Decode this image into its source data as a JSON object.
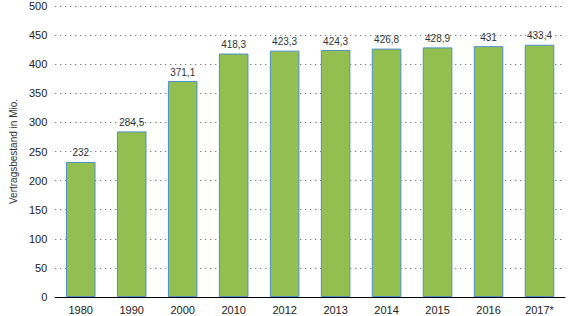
{
  "chart_data": {
    "type": "bar",
    "y_label": "Vertragsbestand in Mio.",
    "categories": [
      "1980",
      "1990",
      "2000",
      "2010",
      "2012",
      "2013",
      "2014",
      "2015",
      "2016",
      "2017*"
    ],
    "values": [
      232,
      284.5,
      371.1,
      418.3,
      423.3,
      424.3,
      426.8,
      428.9,
      431,
      433.4
    ],
    "value_labels": [
      "232",
      "284,5",
      "371,1",
      "418,3",
      "423,3",
      "424,3",
      "426,8",
      "428,9",
      "431",
      "433,4"
    ],
    "color": "#92bf4f",
    "ylim": [
      0,
      500
    ],
    "yticks": [
      0,
      50,
      100,
      150,
      200,
      250,
      300,
      350,
      400,
      450,
      500
    ],
    "grid": true,
    "data_labels": true
  }
}
